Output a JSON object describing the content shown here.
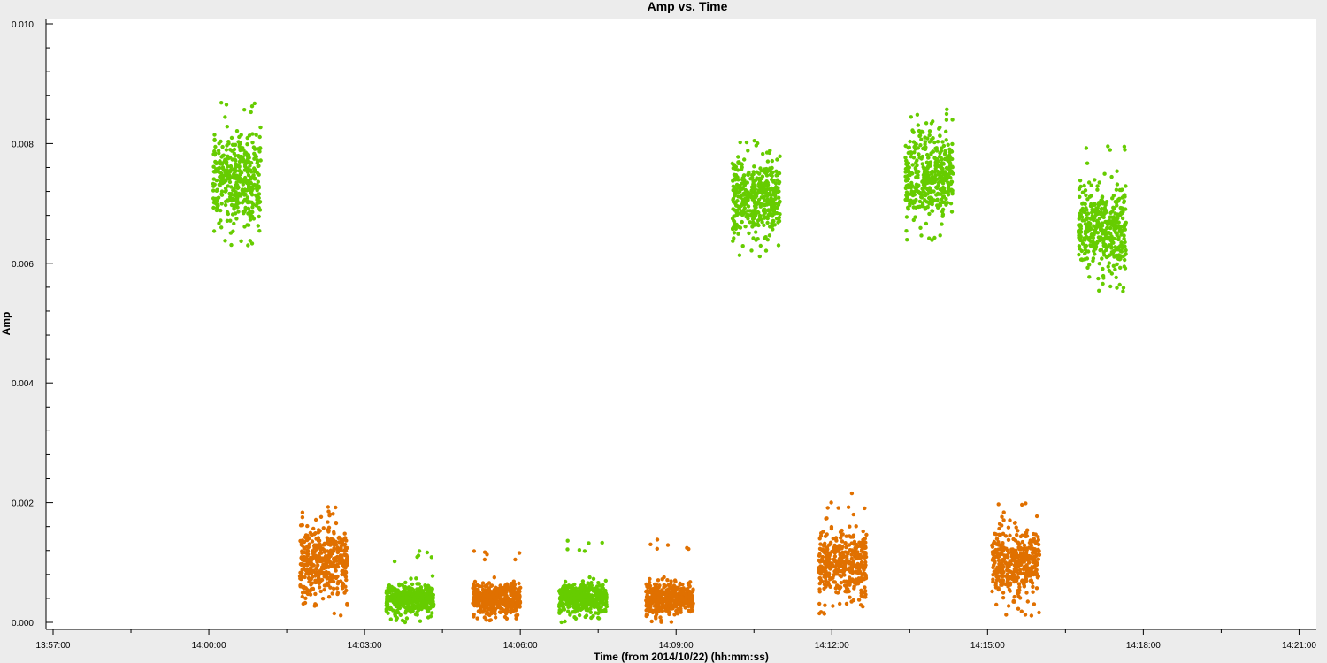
{
  "chart_data": {
    "type": "scatter",
    "title": "Amp vs. Time",
    "xlabel": "Time (from 2014/10/22) (hh:mm:ss)",
    "ylabel": "Amp",
    "x_tick_labels": [
      "13:57:00",
      "14:00:00",
      "14:03:00",
      "14:06:00",
      "14:09:00",
      "14:12:00",
      "14:15:00",
      "14:18:00",
      "14:21:00"
    ],
    "y_tick_labels": [
      "0.000",
      "0.002",
      "0.004",
      "0.006",
      "0.008",
      "0.010"
    ],
    "xlim": [
      "13:57:00",
      "14:21:20"
    ],
    "ylim": [
      0,
      0.01
    ],
    "grid": false,
    "series_colors": {
      "green": "#66cc00",
      "orange": "#e07000"
    },
    "clusters": [
      {
        "color": "green",
        "x_start": "14:00:05",
        "x_end": "14:01:00",
        "y_center": 0.0074,
        "y_min": 0.0063,
        "y_max": 0.0088
      },
      {
        "color": "orange",
        "x_start": "14:01:45",
        "x_end": "14:02:40",
        "y_center": 0.001,
        "y_min": 0.0001,
        "y_max": 0.002
      },
      {
        "color": "green",
        "x_start": "14:03:25",
        "x_end": "14:04:20",
        "y_center": 0.0004,
        "y_min": 0.0,
        "y_max": 0.0012
      },
      {
        "color": "orange",
        "x_start": "14:05:05",
        "x_end": "14:06:00",
        "y_center": 0.0004,
        "y_min": 0.0,
        "y_max": 0.0012
      },
      {
        "color": "green",
        "x_start": "14:06:45",
        "x_end": "14:07:40",
        "y_center": 0.0004,
        "y_min": 0.0,
        "y_max": 0.0014
      },
      {
        "color": "orange",
        "x_start": "14:08:25",
        "x_end": "14:09:20",
        "y_center": 0.0004,
        "y_min": 0.0,
        "y_max": 0.0014
      },
      {
        "color": "green",
        "x_start": "14:10:05",
        "x_end": "14:11:00",
        "y_center": 0.0071,
        "y_min": 0.0061,
        "y_max": 0.0081
      },
      {
        "color": "orange",
        "x_start": "14:11:45",
        "x_end": "14:12:40",
        "y_center": 0.001,
        "y_min": 0.0001,
        "y_max": 0.0022
      },
      {
        "color": "green",
        "x_start": "14:13:25",
        "x_end": "14:14:20",
        "y_center": 0.0075,
        "y_min": 0.0063,
        "y_max": 0.0086
      },
      {
        "color": "orange",
        "x_start": "14:15:05",
        "x_end": "14:16:00",
        "y_center": 0.001,
        "y_min": 0.0001,
        "y_max": 0.002
      },
      {
        "color": "green",
        "x_start": "14:16:45",
        "x_end": "14:17:40",
        "y_center": 0.0066,
        "y_min": 0.0055,
        "y_max": 0.008
      }
    ]
  }
}
